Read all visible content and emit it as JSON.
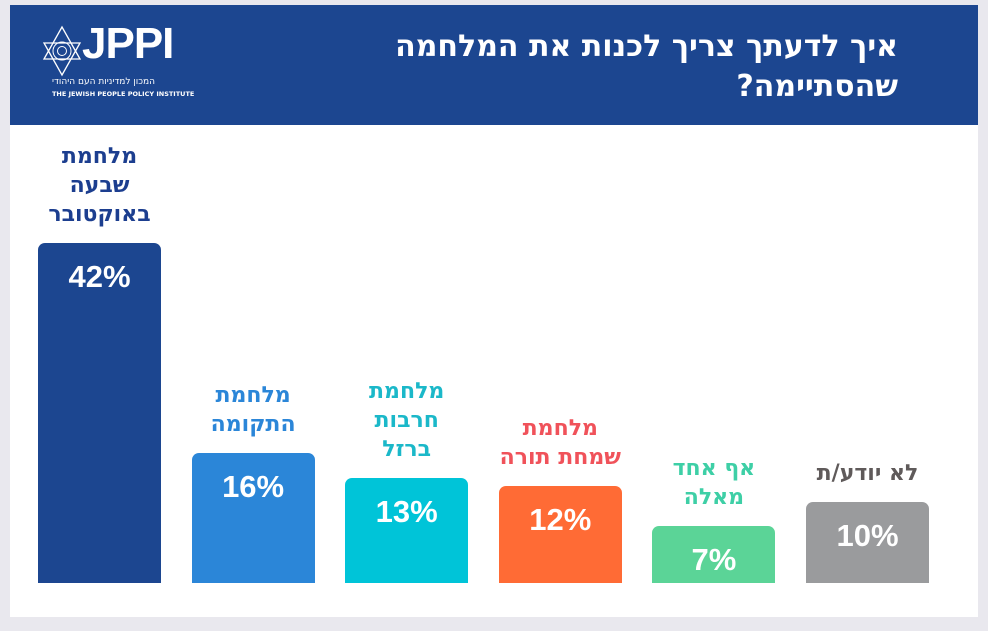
{
  "header": {
    "title": "איך לדעתך צריך לכנות את המלחמה שהסתיימה?",
    "logo_text": "JPPI",
    "logo_hebrew": "המכון למדיניות העם היהודי",
    "logo_english": "THE JEWISH PEOPLE POLICY INSTITUTE"
  },
  "chart_data": {
    "type": "bar",
    "title": "איך לדעתך צריך לכנות את המלחמה שהסתיימה?",
    "xlabel": "",
    "ylabel": "",
    "ylim": [
      0,
      45
    ],
    "categories": [
      "מלחמת שבעה באוקטובר",
      "מלחמת התקומה",
      "מלחמת חרבות ברזל",
      "מלחמת שמחת תורה",
      "אף אחד מאלה",
      "לא יודע/ת"
    ],
    "label_lines": [
      [
        "מלחמת",
        "שבעה",
        "באוקטובר"
      ],
      [
        "מלחמת",
        "התקומה"
      ],
      [
        "מלחמת",
        "חרבות",
        "ברזל"
      ],
      [
        "מלחמת",
        "שמחת תורה"
      ],
      [
        "אף אחד",
        "מאלה"
      ],
      [
        "לא יודע/ת"
      ]
    ],
    "values": [
      42,
      16,
      13,
      12,
      7,
      10
    ],
    "value_labels": [
      "42%",
      "16%",
      "13%",
      "12%",
      "7%",
      "10%"
    ],
    "bar_colors": [
      "#1c4690",
      "#2b86d8",
      "#00c4d8",
      "#ff6b35",
      "#5bd497",
      "#9a9b9d"
    ],
    "label_colors": [
      "#1c3e8f",
      "#2b86d8",
      "#1bb8c9",
      "#f0525a",
      "#3ecfa6",
      "#5f5a5a"
    ]
  }
}
